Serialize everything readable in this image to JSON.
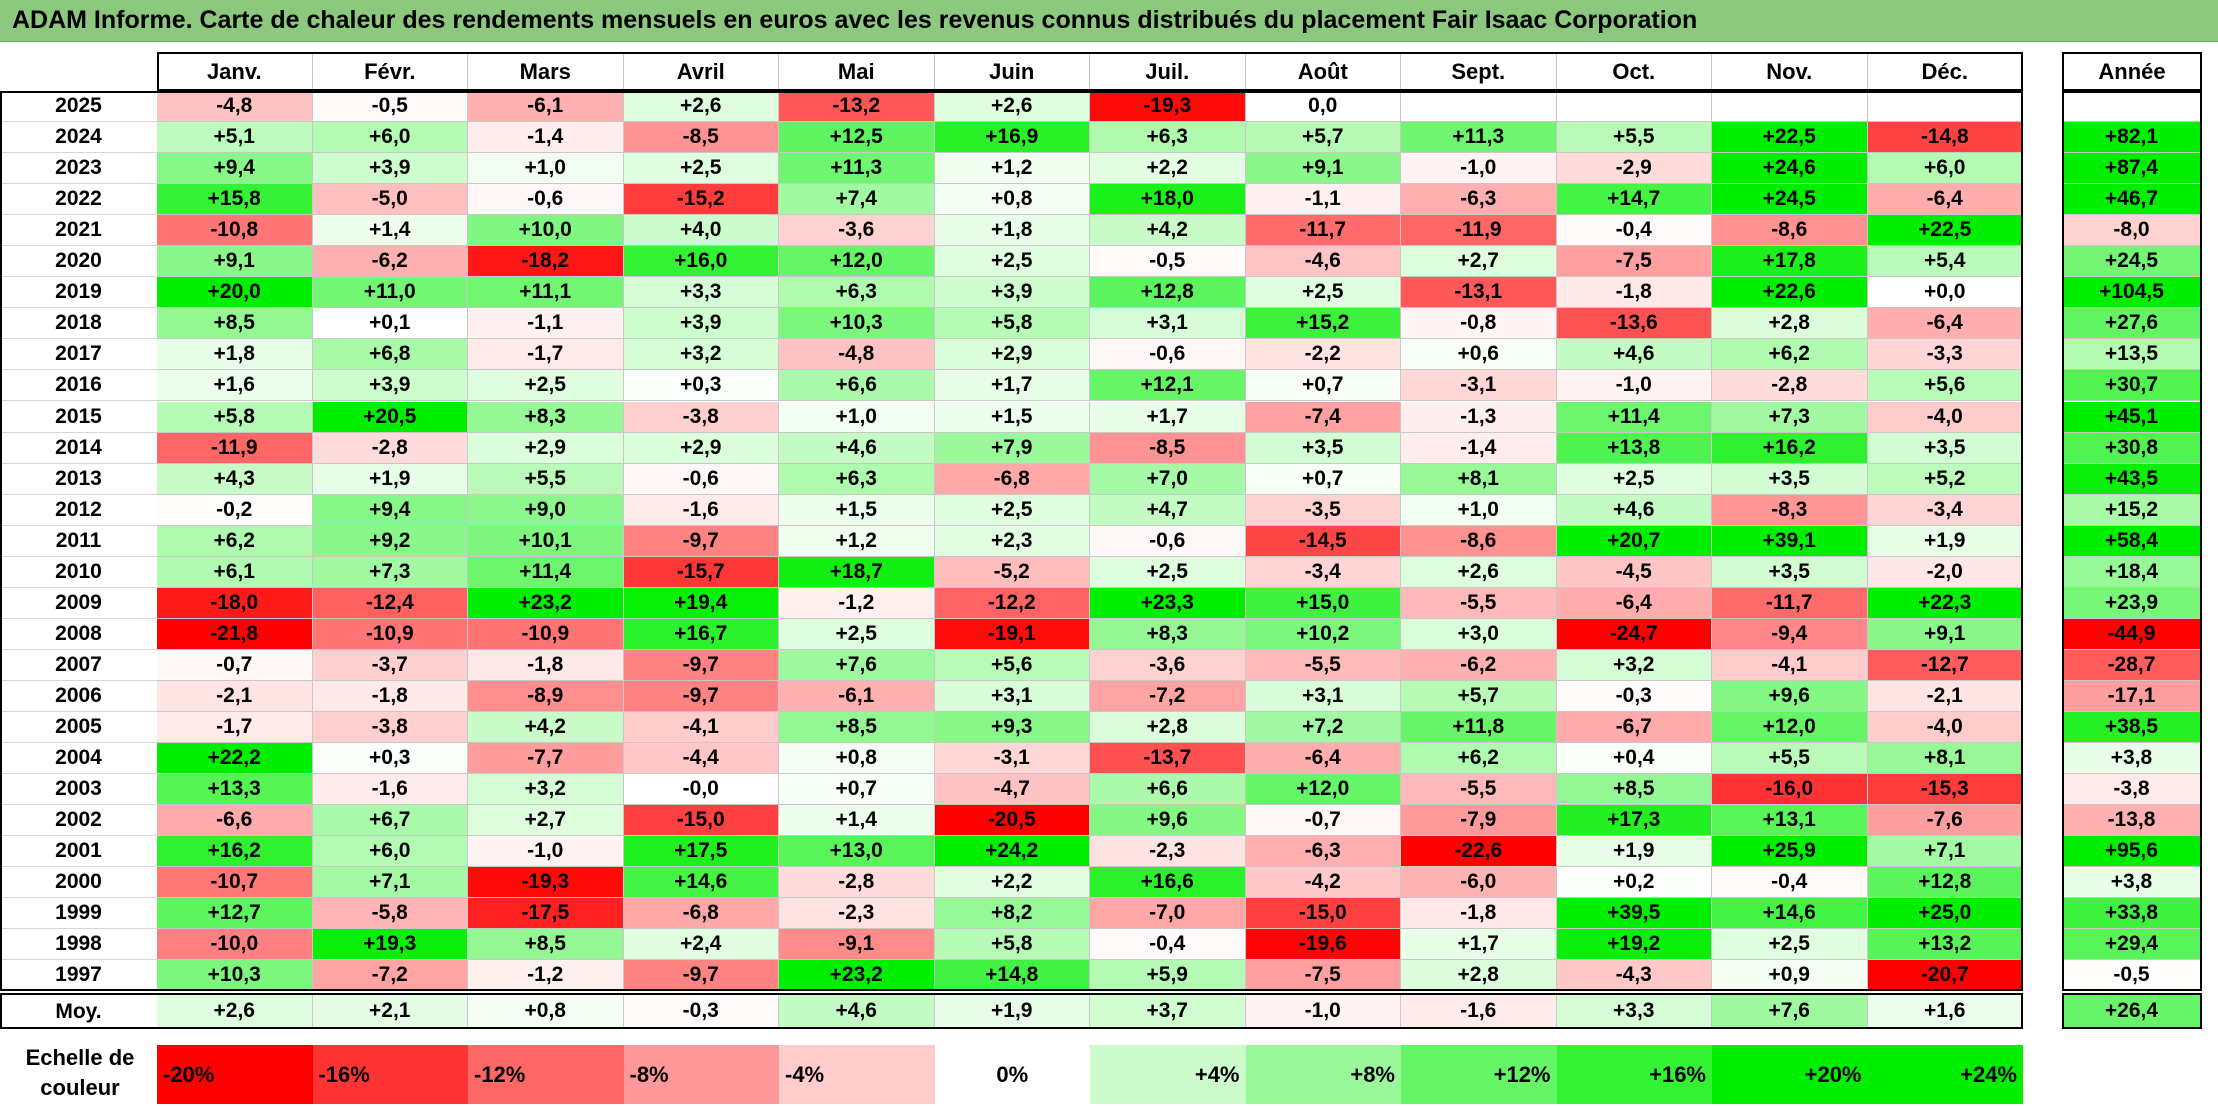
{
  "title": "ADAM Informe. Carte de chaleur des rendements mensuels en euros avec les revenus connus distribués du placement Fair Isaac Corporation",
  "colors": {
    "negative": "#ff0000",
    "zero": "#ffffff",
    "positive": "#00ee00",
    "title_bg": "#8cc97e"
  },
  "chart_data": {
    "type": "heatmap",
    "title": "ADAM Informe. Carte de chaleur des rendements mensuels en euros avec les revenus connus distribués du placement Fair Isaac Corporation",
    "columns": [
      "Janv.",
      "Févr.",
      "Mars",
      "Avril",
      "Mai",
      "Juin",
      "Juil.",
      "Août",
      "Sept.",
      "Oct.",
      "Nov.",
      "Déc."
    ],
    "year_column": "Année",
    "average_label": "Moy.",
    "rows": [
      {
        "year": "2025",
        "months": [
          "-4,8",
          "-0,5",
          "-6,1",
          "+2,6",
          "-13,2",
          "+2,6",
          "-19,3",
          "0,0",
          "",
          "",
          "",
          ""
        ],
        "annual": ""
      },
      {
        "year": "2024",
        "months": [
          "+5,1",
          "+6,0",
          "-1,4",
          "-8,5",
          "+12,5",
          "+16,9",
          "+6,3",
          "+5,7",
          "+11,3",
          "+5,5",
          "+22,5",
          "-14,8"
        ],
        "annual": "+82,1"
      },
      {
        "year": "2023",
        "months": [
          "+9,4",
          "+3,9",
          "+1,0",
          "+2,5",
          "+11,3",
          "+1,2",
          "+2,2",
          "+9,1",
          "-1,0",
          "-2,9",
          "+24,6",
          "+6,0"
        ],
        "annual": "+87,4"
      },
      {
        "year": "2022",
        "months": [
          "+15,8",
          "-5,0",
          "-0,6",
          "-15,2",
          "+7,4",
          "+0,8",
          "+18,0",
          "-1,1",
          "-6,3",
          "+14,7",
          "+24,5",
          "-6,4"
        ],
        "annual": "+46,7"
      },
      {
        "year": "2021",
        "months": [
          "-10,8",
          "+1,4",
          "+10,0",
          "+4,0",
          "-3,6",
          "+1,8",
          "+4,2",
          "-11,7",
          "-11,9",
          "-0,4",
          "-8,6",
          "+22,5"
        ],
        "annual": "-8,0"
      },
      {
        "year": "2020",
        "months": [
          "+9,1",
          "-6,2",
          "-18,2",
          "+16,0",
          "+12,0",
          "+2,5",
          "-0,5",
          "-4,6",
          "+2,7",
          "-7,5",
          "+17,8",
          "+5,4"
        ],
        "annual": "+24,5"
      },
      {
        "year": "2019",
        "months": [
          "+20,0",
          "+11,0",
          "+11,1",
          "+3,3",
          "+6,3",
          "+3,9",
          "+12,8",
          "+2,5",
          "-13,1",
          "-1,8",
          "+22,6",
          "+0,0"
        ],
        "annual": "+104,5"
      },
      {
        "year": "2018",
        "months": [
          "+8,5",
          "+0,1",
          "-1,1",
          "+3,9",
          "+10,3",
          "+5,8",
          "+3,1",
          "+15,2",
          "-0,8",
          "-13,6",
          "+2,8",
          "-6,4"
        ],
        "annual": "+27,6"
      },
      {
        "year": "2017",
        "months": [
          "+1,8",
          "+6,8",
          "-1,7",
          "+3,2",
          "-4,8",
          "+2,9",
          "-0,6",
          "-2,2",
          "+0,6",
          "+4,6",
          "+6,2",
          "-3,3"
        ],
        "annual": "+13,5"
      },
      {
        "year": "2016",
        "months": [
          "+1,6",
          "+3,9",
          "+2,5",
          "+0,3",
          "+6,6",
          "+1,7",
          "+12,1",
          "+0,7",
          "-3,1",
          "-1,0",
          "-2,8",
          "+5,6"
        ],
        "annual": "+30,7"
      },
      {
        "year": "2015",
        "months": [
          "+5,8",
          "+20,5",
          "+8,3",
          "-3,8",
          "+1,0",
          "+1,5",
          "+1,7",
          "-7,4",
          "-1,3",
          "+11,4",
          "+7,3",
          "-4,0"
        ],
        "annual": "+45,1"
      },
      {
        "year": "2014",
        "months": [
          "-11,9",
          "-2,8",
          "+2,9",
          "+2,9",
          "+4,6",
          "+7,9",
          "-8,5",
          "+3,5",
          "-1,4",
          "+13,8",
          "+16,2",
          "+3,5"
        ],
        "annual": "+30,8"
      },
      {
        "year": "2013",
        "months": [
          "+4,3",
          "+1,9",
          "+5,5",
          "-0,6",
          "+6,3",
          "-6,8",
          "+7,0",
          "+0,7",
          "+8,1",
          "+2,5",
          "+3,5",
          "+5,2"
        ],
        "annual": "+43,5"
      },
      {
        "year": "2012",
        "months": [
          "-0,2",
          "+9,4",
          "+9,0",
          "-1,6",
          "+1,5",
          "+2,5",
          "+4,7",
          "-3,5",
          "+1,0",
          "+4,6",
          "-8,3",
          "-3,4"
        ],
        "annual": "+15,2"
      },
      {
        "year": "2011",
        "months": [
          "+6,2",
          "+9,2",
          "+10,1",
          "-9,7",
          "+1,2",
          "+2,3",
          "-0,6",
          "-14,5",
          "-8,6",
          "+20,7",
          "+39,1",
          "+1,9"
        ],
        "annual": "+58,4"
      },
      {
        "year": "2010",
        "months": [
          "+6,1",
          "+7,3",
          "+11,4",
          "-15,7",
          "+18,7",
          "-5,2",
          "+2,5",
          "-3,4",
          "+2,6",
          "-4,5",
          "+3,5",
          "-2,0"
        ],
        "annual": "+18,4"
      },
      {
        "year": "2009",
        "months": [
          "-18,0",
          "-12,4",
          "+23,2",
          "+19,4",
          "-1,2",
          "-12,2",
          "+23,3",
          "+15,0",
          "-5,5",
          "-6,4",
          "-11,7",
          "+22,3"
        ],
        "annual": "+23,9"
      },
      {
        "year": "2008",
        "months": [
          "-21,8",
          "-10,9",
          "-10,9",
          "+16,7",
          "+2,5",
          "-19,1",
          "+8,3",
          "+10,2",
          "+3,0",
          "-24,7",
          "-9,4",
          "+9,1"
        ],
        "annual": "-44,9"
      },
      {
        "year": "2007",
        "months": [
          "-0,7",
          "-3,7",
          "-1,8",
          "-9,7",
          "+7,6",
          "+5,6",
          "-3,6",
          "-5,5",
          "-6,2",
          "+3,2",
          "-4,1",
          "-12,7"
        ],
        "annual": "-28,7"
      },
      {
        "year": "2006",
        "months": [
          "-2,1",
          "-1,8",
          "-8,9",
          "-9,7",
          "-6,1",
          "+3,1",
          "-7,2",
          "+3,1",
          "+5,7",
          "-0,3",
          "+9,6",
          "-2,1"
        ],
        "annual": "-17,1"
      },
      {
        "year": "2005",
        "months": [
          "-1,7",
          "-3,8",
          "+4,2",
          "-4,1",
          "+8,5",
          "+9,3",
          "+2,8",
          "+7,2",
          "+11,8",
          "-6,7",
          "+12,0",
          "-4,0"
        ],
        "annual": "+38,5"
      },
      {
        "year": "2004",
        "months": [
          "+22,2",
          "+0,3",
          "-7,7",
          "-4,4",
          "+0,8",
          "-3,1",
          "-13,7",
          "-6,4",
          "+6,2",
          "+0,4",
          "+5,5",
          "+8,1"
        ],
        "annual": "+3,8"
      },
      {
        "year": "2003",
        "months": [
          "+13,3",
          "-1,6",
          "+3,2",
          "-0,0",
          "+0,7",
          "-4,7",
          "+6,6",
          "+12,0",
          "-5,5",
          "+8,5",
          "-16,0",
          "-15,3"
        ],
        "annual": "-3,8"
      },
      {
        "year": "2002",
        "months": [
          "-6,6",
          "+6,7",
          "+2,7",
          "-15,0",
          "+1,4",
          "-20,5",
          "+9,6",
          "-0,7",
          "-7,9",
          "+17,3",
          "+13,1",
          "-7,6"
        ],
        "annual": "-13,8"
      },
      {
        "year": "2001",
        "months": [
          "+16,2",
          "+6,0",
          "-1,0",
          "+17,5",
          "+13,0",
          "+24,2",
          "-2,3",
          "-6,3",
          "-22,6",
          "+1,9",
          "+25,9",
          "+7,1"
        ],
        "annual": "+95,6"
      },
      {
        "year": "2000",
        "months": [
          "-10,7",
          "+7,1",
          "-19,3",
          "+14,6",
          "-2,8",
          "+2,2",
          "+16,6",
          "-4,2",
          "-6,0",
          "+0,2",
          "-0,4",
          "+12,8"
        ],
        "annual": "+3,8"
      },
      {
        "year": "1999",
        "months": [
          "+12,7",
          "-5,8",
          "-17,5",
          "-6,8",
          "-2,3",
          "+8,2",
          "-7,0",
          "-15,0",
          "-1,8",
          "+39,5",
          "+14,6",
          "+25,0"
        ],
        "annual": "+33,8"
      },
      {
        "year": "1998",
        "months": [
          "-10,0",
          "+19,3",
          "+8,5",
          "+2,4",
          "-9,1",
          "+5,8",
          "-0,4",
          "-19,6",
          "+1,7",
          "+19,2",
          "+2,5",
          "+13,2"
        ],
        "annual": "+29,4"
      },
      {
        "year": "1997",
        "months": [
          "+10,3",
          "-7,2",
          "-1,2",
          "-9,7",
          "+23,2",
          "+14,8",
          "+5,9",
          "-7,5",
          "+2,8",
          "-4,3",
          "+0,9",
          "-20,7"
        ],
        "annual": "-0,5"
      }
    ],
    "averages": [
      "+2,6",
      "+2,1",
      "+0,8",
      "-0,3",
      "+4,6",
      "+1,9",
      "+3,7",
      "-1,0",
      "-1,6",
      "+3,3",
      "+7,6",
      "+1,6"
    ],
    "average_annual": "+26,4",
    "color_scale": {
      "label": "Echelle de couleur",
      "stops": [
        "-20%",
        "-16%",
        "-12%",
        "-8%",
        "-4%",
        "0%",
        "+4%",
        "+8%",
        "+12%",
        "+16%",
        "+20%",
        "+24%"
      ],
      "stop_values": [
        -20,
        -16,
        -12,
        -8,
        -4,
        0,
        4,
        8,
        12,
        16,
        20,
        24
      ]
    }
  }
}
